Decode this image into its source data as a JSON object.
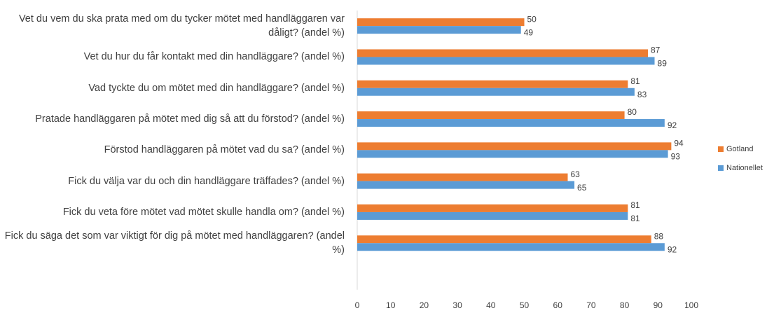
{
  "chart_data": {
    "type": "bar",
    "orientation": "horizontal",
    "categories": [
      "Vet du vem du ska prata med om du tycker mötet med handläggaren var dåligt? (andel %)",
      "Vet du hur du får kontakt med din handläggare? (andel %)",
      "Vad tyckte du om mötet med din handläggare? (andel %)",
      "Pratade handläggaren på mötet med dig så att du förstod? (andel %)",
      "Förstod handläggaren på mötet vad du sa? (andel %)",
      "Fick du välja var du och din handläggare träffades? (andel %)",
      "Fick du veta före mötet vad mötet skulle handla om? (andel %)",
      "Fick du säga det som var viktigt för dig på mötet med handläggaren? (andel %)"
    ],
    "series": [
      {
        "name": "Gotland",
        "color": "#ed7d31",
        "values": [
          50,
          87,
          81,
          80,
          94,
          63,
          81,
          88
        ]
      },
      {
        "name": "Nationellet",
        "color": "#5b9bd5",
        "values": [
          49,
          89,
          83,
          92,
          93,
          65,
          81,
          92
        ]
      }
    ],
    "xlim": [
      0,
      100
    ],
    "xticks": [
      0,
      10,
      20,
      30,
      40,
      50,
      60,
      70,
      80,
      90,
      100
    ],
    "legend": "right"
  }
}
